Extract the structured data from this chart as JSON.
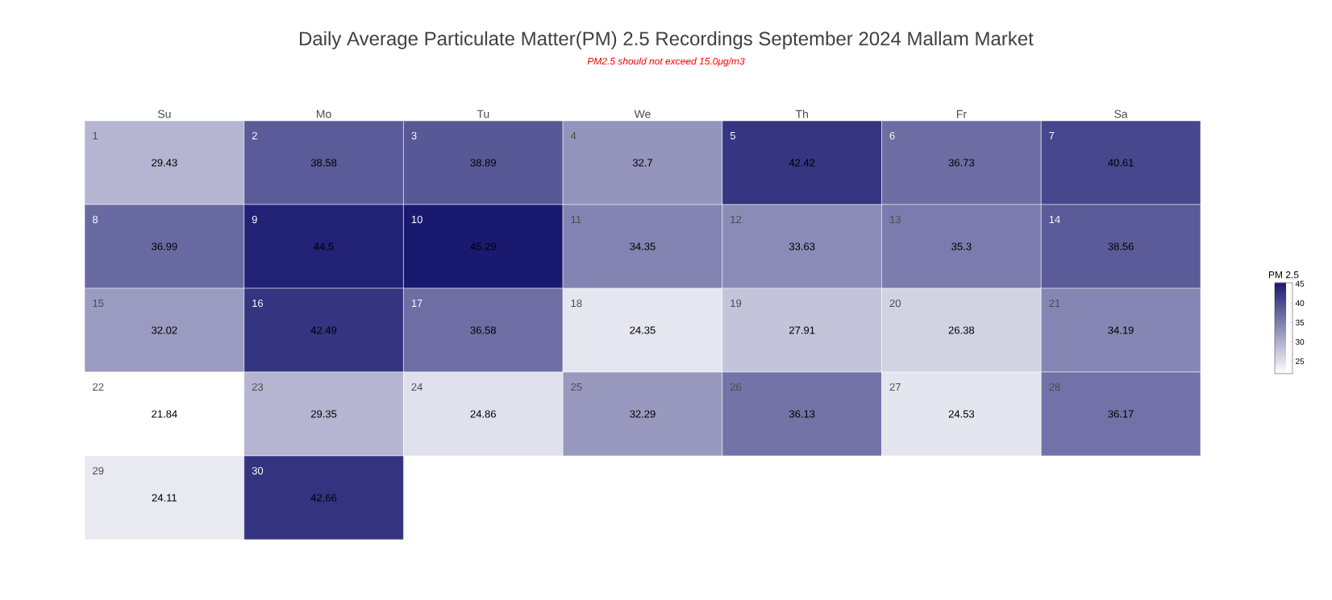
{
  "chart_data": {
    "type": "heatmap",
    "title": "Daily Average Particulate Matter(PM) 2.5 Recordings September 2024 Mallam Market",
    "subtitle": "PM2.5 should not exceed 15.0μg/m3",
    "categories": [
      "Su",
      "Mo",
      "Tu",
      "We",
      "Th",
      "Fr",
      "Sa"
    ],
    "y_categories": [
      null,
      null,
      null,
      null,
      null
    ],
    "cells": [
      [
        29.43,
        38.58,
        38.89,
        32.7,
        42.42,
        36.73,
        40.61
      ],
      [
        36.99,
        44.5,
        45.29,
        34.35,
        33.63,
        35.3,
        38.56
      ],
      [
        32.02,
        42.49,
        36.58,
        24.35,
        27.91,
        26.38,
        34.19
      ],
      [
        21.84,
        29.35,
        24.86,
        32.29,
        36.13,
        24.53,
        36.17
      ],
      [
        24.11,
        42.66,
        null,
        null,
        null,
        null,
        null
      ]
    ],
    "annotations": [
      "1",
      "2",
      "3",
      "4",
      "5",
      "6",
      "7",
      "8",
      "9",
      "10",
      "11",
      "12",
      "13",
      "14",
      "15",
      "16",
      "17",
      "18",
      "19",
      "20",
      "21",
      "22",
      "23",
      "24",
      "25",
      "26",
      "27",
      "28",
      "29",
      "30"
    ],
    "data_labels": true,
    "clabel": "PM 2.5",
    "clim": [
      21.84,
      45.29
    ],
    "cticks": [
      25,
      30,
      35,
      40,
      45
    ],
    "colors": [
      "#ffffff",
      "#191970"
    ]
  }
}
